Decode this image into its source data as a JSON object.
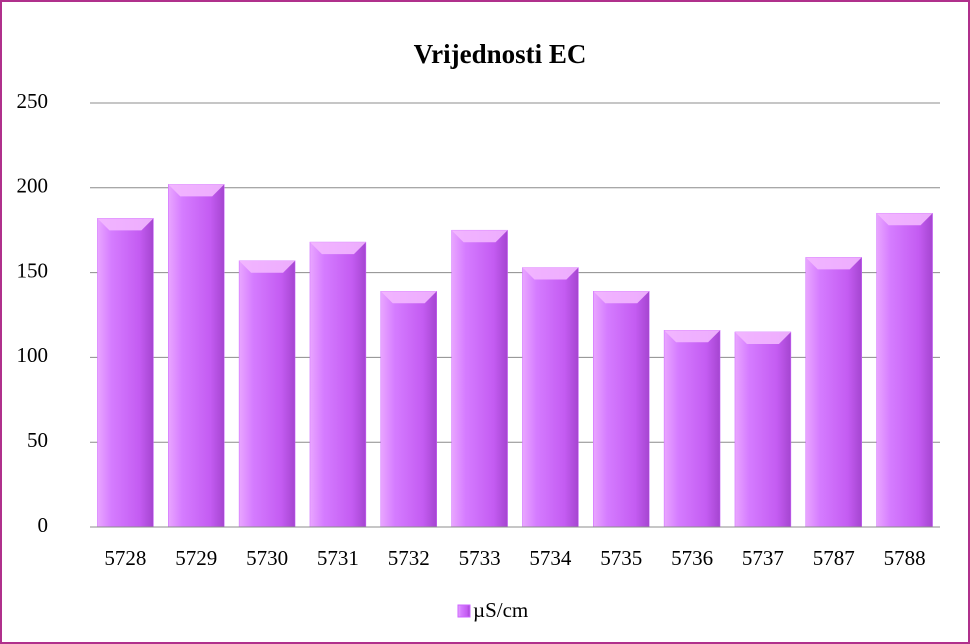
{
  "chart_data": {
    "type": "bar",
    "title": "Vrijednosti EC",
    "categories": [
      "5728",
      "5729",
      "5730",
      "5731",
      "5732",
      "5733",
      "5734",
      "5735",
      "5736",
      "5737",
      "5787",
      "5788"
    ],
    "series": [
      {
        "name": "µS/cm",
        "color": "#cc66ff",
        "values": [
          182,
          202,
          157,
          168,
          139,
          175,
          153,
          139,
          116,
          115,
          159,
          185
        ]
      }
    ],
    "ylim": [
      0,
      250
    ],
    "yticks": [
      0,
      50,
      100,
      150,
      200,
      250
    ],
    "grid": true,
    "legend": "bottom"
  }
}
